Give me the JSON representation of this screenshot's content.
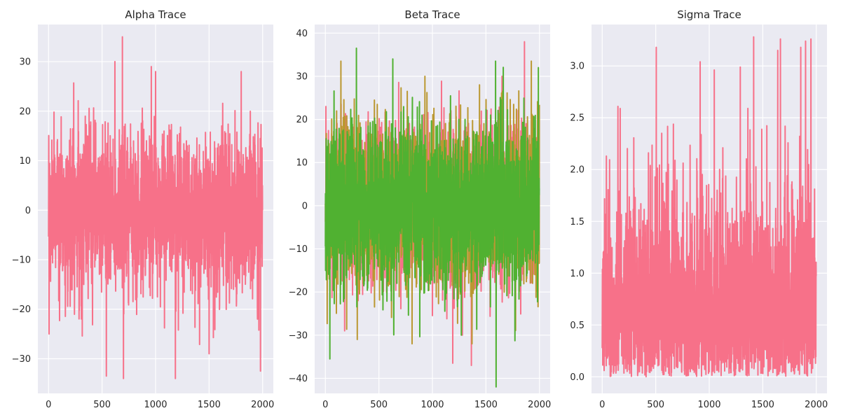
{
  "chart_data": [
    {
      "type": "line",
      "title": "Alpha Trace",
      "xlabel": "",
      "ylabel": "",
      "xlim": [
        -100,
        2100
      ],
      "ylim": [
        -37,
        37.5
      ],
      "xticks": [
        0,
        500,
        1000,
        1500,
        2000
      ],
      "yticks": [
        -30,
        -20,
        -10,
        0,
        10,
        20,
        30
      ],
      "grid": true,
      "n_samples": 2000,
      "series": [
        {
          "color": "#f77189",
          "center": 0,
          "spread": 9.5,
          "min": -34,
          "max": 35,
          "extremes": [
            [
              5,
              -25
            ],
            [
              690,
              35
            ],
            [
              700,
              -34
            ],
            [
              540,
              -33.5
            ],
            [
              1185,
              -34
            ],
            [
              1980,
              -32.5
            ],
            [
              235,
              25.7
            ],
            [
              620,
              30
            ],
            [
              960,
              29
            ],
            [
              1000,
              28
            ],
            [
              1800,
              28
            ],
            [
              1500,
              -29
            ]
          ]
        }
      ]
    },
    {
      "type": "line",
      "title": "Beta Trace",
      "xlabel": "",
      "ylabel": "",
      "xlim": [
        -100,
        2100
      ],
      "ylim": [
        -43.5,
        42
      ],
      "xticks": [
        0,
        500,
        1000,
        1500,
        2000
      ],
      "yticks": [
        -40,
        -30,
        -20,
        -10,
        0,
        10,
        20,
        30,
        40
      ],
      "grid": true,
      "n_samples": 2000,
      "series": [
        {
          "color": "#f77189",
          "center": 0,
          "spread": 10.5,
          "min": -37,
          "max": 38,
          "extremes": [
            [
              1190,
              -36.5
            ],
            [
              1860,
              38
            ],
            [
              1650,
              30
            ],
            [
              5,
              23
            ],
            [
              180,
              -29
            ],
            [
              1280,
              -30
            ]
          ]
        },
        {
          "color": "#bb9832",
          "center": 0,
          "spread": 10.5,
          "min": -32,
          "max": 33.5,
          "extremes": [
            [
              145,
              33.5
            ],
            [
              298,
              -31
            ],
            [
              1370,
              -32
            ],
            [
              930,
              30
            ],
            [
              1440,
              28
            ]
          ]
        },
        {
          "color": "#50b131",
          "center": 0,
          "spread": 10.5,
          "min": -42,
          "max": 36.5,
          "extremes": [
            [
              42,
              -35.5
            ],
            [
              290,
              36.5
            ],
            [
              630,
              34
            ],
            [
              1595,
              -42
            ],
            [
              1590,
              33.5
            ],
            [
              1990,
              32
            ],
            [
              1270,
              -30
            ]
          ]
        }
      ]
    },
    {
      "type": "line",
      "title": "Sigma Trace",
      "xlabel": "",
      "ylabel": "",
      "xlim": [
        -100,
        2100
      ],
      "ylim": [
        -0.16,
        3.4
      ],
      "xticks": [
        0,
        500,
        1000,
        1500,
        2000
      ],
      "yticks": [
        0.0,
        0.5,
        1.0,
        1.5,
        2.0,
        2.5,
        3.0
      ],
      "grid": true,
      "n_samples": 2000,
      "series": [
        {
          "color": "#f77189",
          "center": 0.6,
          "spread": 0.55,
          "min": 0.0,
          "max": 3.28,
          "extremes": [
            [
              505,
              3.18
            ],
            [
              915,
              3.04
            ],
            [
              1290,
              2.99
            ],
            [
              1415,
              3.28
            ],
            [
              1640,
              3.15
            ],
            [
              1665,
              3.26
            ],
            [
              1900,
              3.24
            ],
            [
              1950,
              3.26
            ],
            [
              1855,
              3.18
            ]
          ]
        }
      ]
    }
  ],
  "titles": [
    "Alpha Trace",
    "Beta Trace",
    "Sigma Trace"
  ]
}
